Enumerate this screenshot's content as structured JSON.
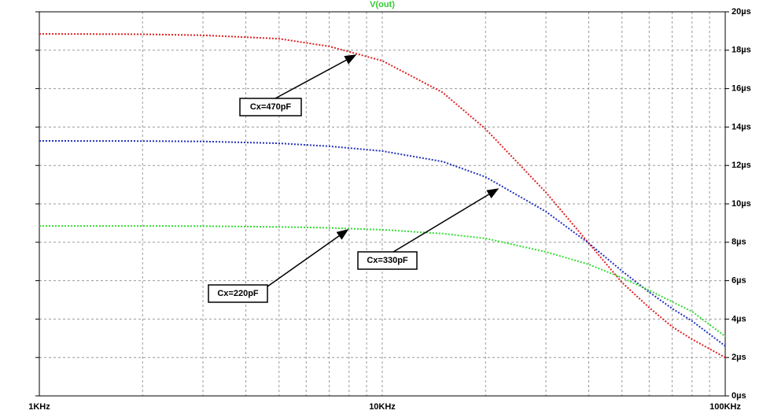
{
  "chart_data": {
    "type": "line",
    "title": "V(out)",
    "title_color": "#33cc33",
    "log_x": true,
    "grid": true,
    "xlim": [
      1000,
      100000
    ],
    "xticks": [
      {
        "value": 1000,
        "label": "1KHz"
      },
      {
        "value": 10000,
        "label": "10KHz"
      },
      {
        "value": 100000,
        "label": "100KHz"
      }
    ],
    "x_minor_ticks": [
      2000,
      3000,
      4000,
      5000,
      6000,
      7000,
      8000,
      9000,
      20000,
      30000,
      40000,
      50000,
      60000,
      70000,
      80000,
      90000
    ],
    "ylim": [
      0,
      20
    ],
    "yticks": [
      {
        "value": 0,
        "label": "0µs"
      },
      {
        "value": 2,
        "label": "2µs"
      },
      {
        "value": 4,
        "label": "4µs"
      },
      {
        "value": 6,
        "label": "6µs"
      },
      {
        "value": 8,
        "label": "8µs"
      },
      {
        "value": 10,
        "label": "10µs"
      },
      {
        "value": 12,
        "label": "12µs"
      },
      {
        "value": 14,
        "label": "14µs"
      },
      {
        "value": 16,
        "label": "16µs"
      },
      {
        "value": 18,
        "label": "18µs"
      },
      {
        "value": 20,
        "label": "20µs"
      }
    ],
    "x": [
      1000,
      2000,
      3000,
      5000,
      7000,
      10000,
      15000,
      20000,
      30000,
      40000,
      50000,
      60000,
      70000,
      80000,
      100000
    ],
    "series": [
      {
        "color": "#dd2222",
        "values": [
          18.85,
          18.83,
          18.78,
          18.6,
          18.2,
          17.45,
          15.8,
          13.9,
          10.6,
          7.95,
          5.9,
          4.6,
          3.6,
          2.95,
          2.0
        ]
      },
      {
        "color": "#2233bb",
        "values": [
          13.28,
          13.27,
          13.25,
          13.15,
          13.0,
          12.75,
          12.2,
          11.4,
          9.6,
          7.95,
          6.5,
          5.4,
          4.55,
          3.9,
          2.6
        ]
      },
      {
        "color": "#33dd33",
        "values": [
          8.85,
          8.85,
          8.84,
          8.8,
          8.75,
          8.65,
          8.45,
          8.2,
          7.5,
          6.85,
          6.15,
          5.5,
          4.9,
          4.4,
          3.1
        ]
      }
    ],
    "annotations": [
      "Cx=470pF",
      "Cx=330pF",
      "Cx=220pF"
    ]
  }
}
